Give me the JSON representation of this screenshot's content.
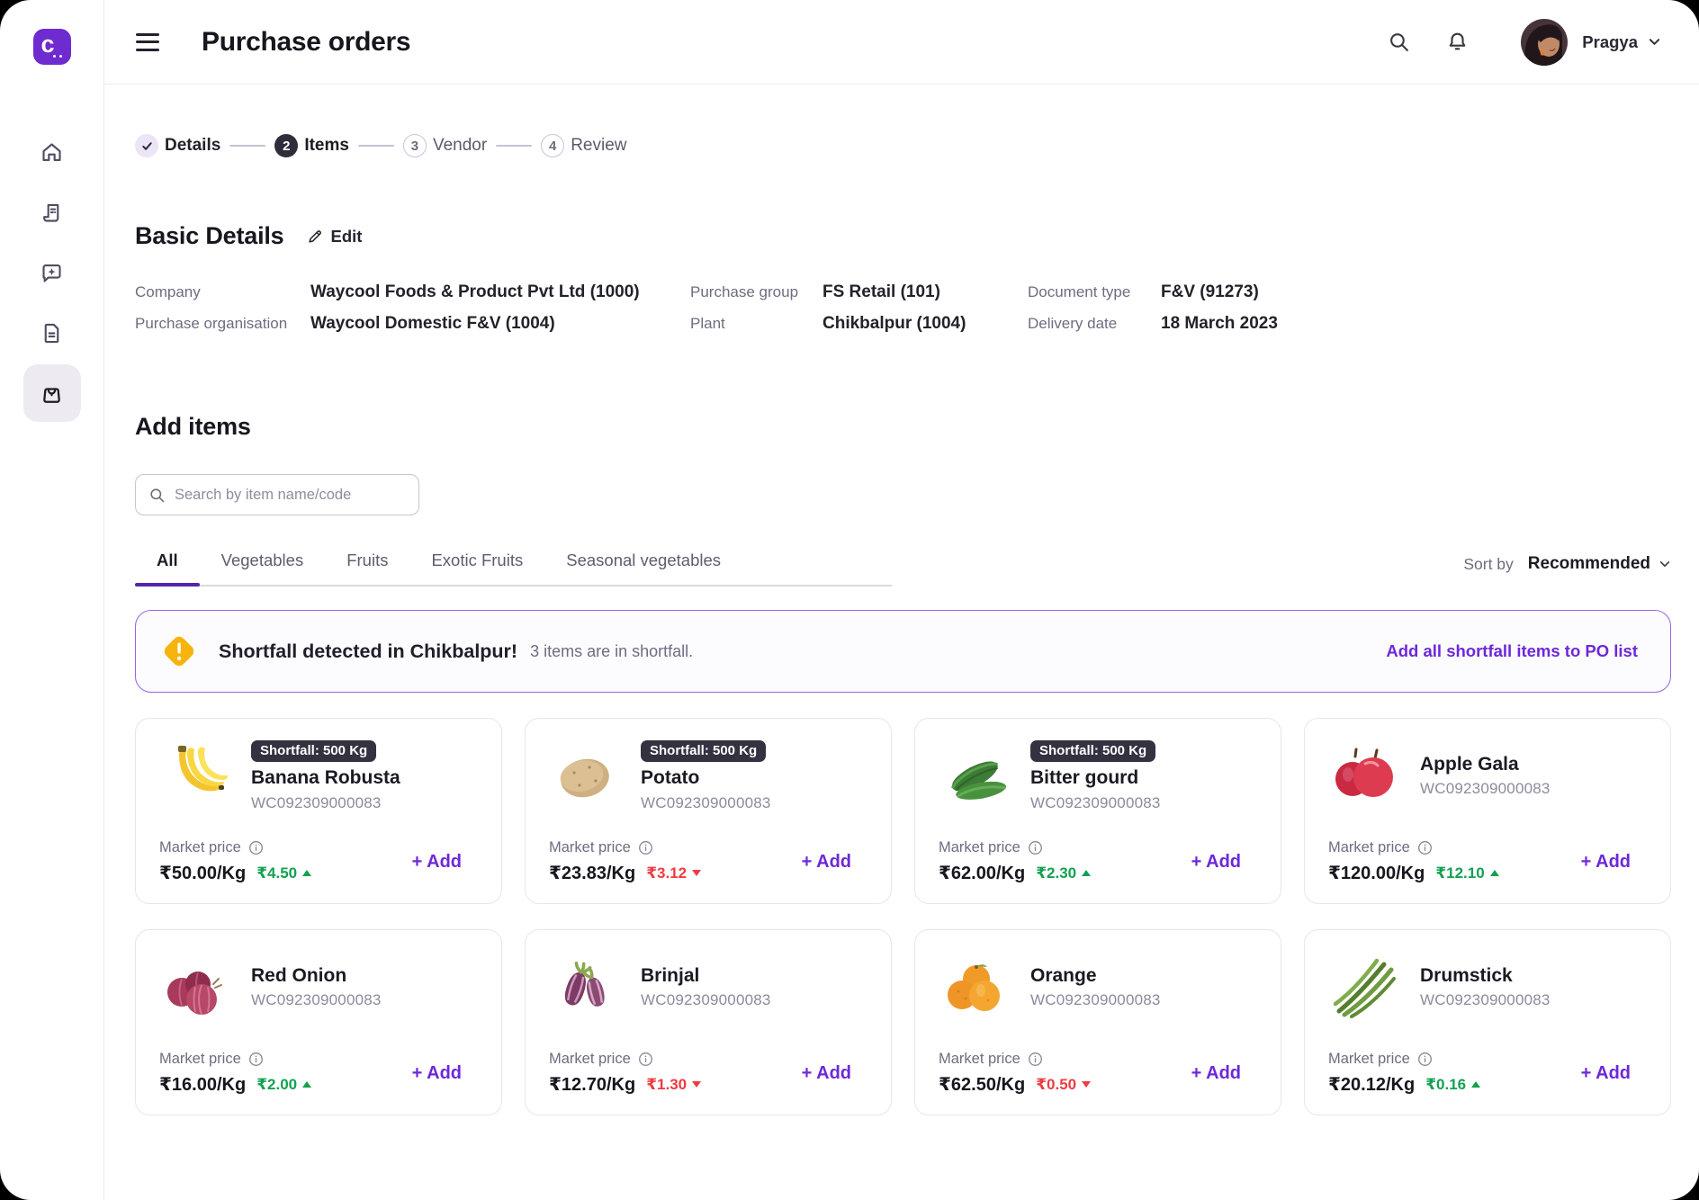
{
  "header": {
    "title": "Purchase orders",
    "user_name": "Pragya"
  },
  "sidebar": {
    "items": [
      {
        "id": "home",
        "icon": "home-icon",
        "active": false
      },
      {
        "id": "orders",
        "icon": "receipt-icon",
        "active": false
      },
      {
        "id": "messages",
        "icon": "message-sparkle-icon",
        "active": false
      },
      {
        "id": "documents",
        "icon": "document-icon",
        "active": false
      },
      {
        "id": "purchase",
        "icon": "shopping-bag-icon",
        "active": true
      }
    ]
  },
  "stepper": [
    {
      "label": "Details",
      "state": "done",
      "number": ""
    },
    {
      "label": "Items",
      "state": "active",
      "number": "2"
    },
    {
      "label": "Vendor",
      "state": "upcoming",
      "number": "3"
    },
    {
      "label": "Review",
      "state": "upcoming",
      "number": "4"
    }
  ],
  "basic_details": {
    "heading": "Basic Details",
    "edit_label": "Edit",
    "fields": [
      {
        "label": "Company",
        "value": "Waycool Foods & Product Pvt Ltd (1000)"
      },
      {
        "label": "Purchase organisation",
        "value": "Waycool Domestic F&V (1004)"
      },
      {
        "label": "Purchase group",
        "value": "FS Retail (101)"
      },
      {
        "label": "Plant",
        "value": "Chikbalpur (1004)"
      },
      {
        "label": "Document type",
        "value": "F&V (91273)"
      },
      {
        "label": "Delivery date",
        "value": "18 March 2023"
      }
    ]
  },
  "add_items": {
    "heading": "Add items",
    "search_placeholder": "Search by item name/code"
  },
  "tabs": [
    {
      "label": "All",
      "active": true
    },
    {
      "label": "Vegetables",
      "active": false
    },
    {
      "label": "Fruits",
      "active": false
    },
    {
      "label": "Exotic Fruits",
      "active": false
    },
    {
      "label": "Seasonal vegetables",
      "active": false
    }
  ],
  "sort": {
    "label": "Sort by",
    "value": "Recommended"
  },
  "alert": {
    "title": "Shortfall detected in Chikbalpur!",
    "subtitle": "3 items are in shortfall.",
    "action": "Add all shortfall items to PO list"
  },
  "cards_common": {
    "market_price_label": "Market price",
    "add_label": "+ Add"
  },
  "cards": [
    {
      "name": "Banana Robusta",
      "code": "WC092309000083",
      "badge": "Shortfall: 500 Kg",
      "price": "₹50.00/Kg",
      "change": "₹4.50",
      "direction": "up",
      "image": "banana-image"
    },
    {
      "name": "Potato",
      "code": "WC092309000083",
      "badge": "Shortfall: 500 Kg",
      "price": "₹23.83/Kg",
      "change": "₹3.12",
      "direction": "down",
      "image": "potato-image"
    },
    {
      "name": "Bitter gourd",
      "code": "WC092309000083",
      "badge": "Shortfall: 500 Kg",
      "price": "₹62.00/Kg",
      "change": "₹2.30",
      "direction": "up",
      "image": "bitter-gourd-image"
    },
    {
      "name": "Apple Gala",
      "code": "WC092309000083",
      "badge": null,
      "price": "₹120.00/Kg",
      "change": "₹12.10",
      "direction": "up",
      "image": "apple-image"
    },
    {
      "name": "Red Onion",
      "code": "WC092309000083",
      "badge": null,
      "price": "₹16.00/Kg",
      "change": "₹2.00",
      "direction": "up",
      "image": "red-onion-image"
    },
    {
      "name": "Brinjal",
      "code": "WC092309000083",
      "badge": null,
      "price": "₹12.70/Kg",
      "change": "₹1.30",
      "direction": "down",
      "image": "brinjal-image"
    },
    {
      "name": "Orange",
      "code": "WC092309000083",
      "badge": null,
      "price": "₹62.50/Kg",
      "change": "₹0.50",
      "direction": "down",
      "image": "orange-image"
    },
    {
      "name": "Drumstick",
      "code": "WC092309000083",
      "badge": null,
      "price": "₹20.12/Kg",
      "change": "₹0.16",
      "direction": "up",
      "image": "drumstick-image"
    }
  ],
  "colors": {
    "accent": "#6d28d9",
    "green": "#12a150",
    "red": "#ee3b41",
    "amber": "#f6b40d",
    "badge_bg": "#343141"
  }
}
